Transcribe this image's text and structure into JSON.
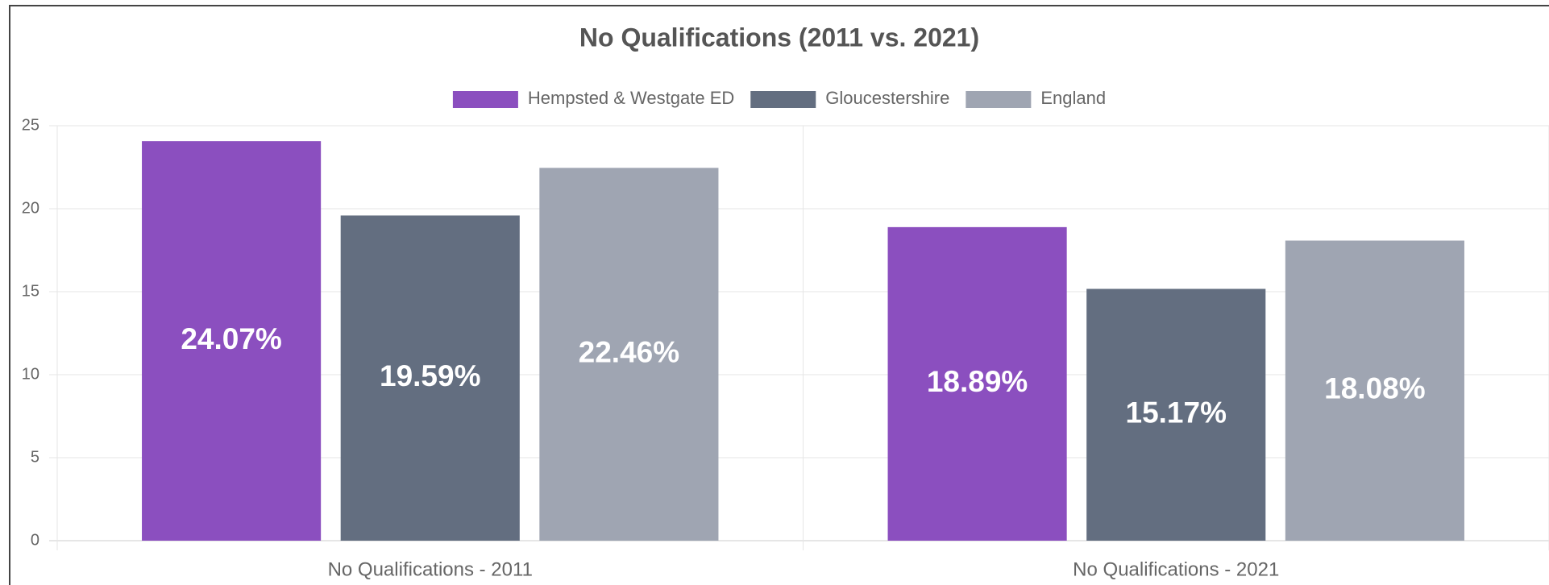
{
  "chart_data": {
    "type": "bar",
    "title": "No Qualifications (2011 vs. 2021)",
    "categories": [
      "No Qualifications - 2011",
      "No Qualifications - 2021"
    ],
    "series": [
      {
        "name": "Hempsted & Westgate ED",
        "color": "#8b4fbf",
        "values": [
          24.07,
          18.89
        ],
        "value_labels": [
          "24.07%",
          "18.89%"
        ]
      },
      {
        "name": "Gloucestershire",
        "color": "#636e80",
        "values": [
          19.59,
          15.17
        ],
        "value_labels": [
          "19.59%",
          "15.17%"
        ]
      },
      {
        "name": "England",
        "color": "#9fa5b2",
        "values": [
          22.46,
          18.08
        ],
        "value_labels": [
          "22.46%",
          "18.08%"
        ]
      }
    ],
    "ylim": [
      0,
      25
    ],
    "yticks": [
      0,
      5,
      10,
      15,
      20,
      25
    ],
    "grid": true,
    "legend": "top"
  }
}
